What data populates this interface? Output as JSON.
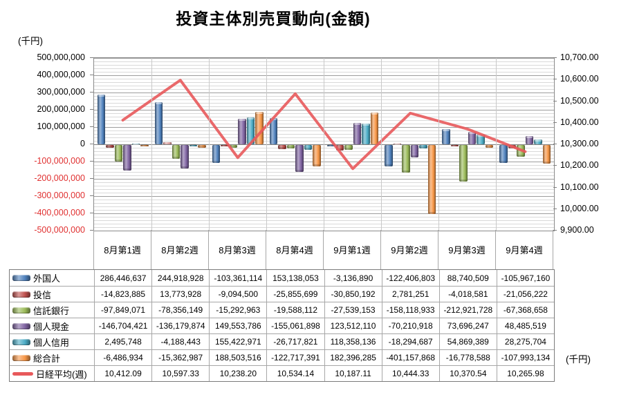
{
  "chart_data": {
    "type": "combo-bar-line",
    "title": "投資主体別売買動向(金額)",
    "categories": [
      "8月第1週",
      "8月第2週",
      "8月第3週",
      "8月第4週",
      "9月第1週",
      "9月第2週",
      "9月第3週",
      "9月第4週"
    ],
    "bar_series": [
      {
        "name": "外国人",
        "color": "#4F81BD",
        "values": [
          286446637,
          244918928,
          -103361114,
          153138053,
          -3136890,
          -122406803,
          88740509,
          -105967160
        ]
      },
      {
        "name": "投信",
        "color": "#C0504D",
        "values": [
          -14823885,
          13773928,
          -9094500,
          -25855699,
          -30850192,
          2781251,
          -4018581,
          -21056222
        ]
      },
      {
        "name": "信託銀行",
        "color": "#9BBB59",
        "values": [
          -97849071,
          -78356149,
          -15292963,
          -19588112,
          -27539153,
          -158118933,
          -212921728,
          -67368658
        ]
      },
      {
        "name": "個人現金",
        "color": "#8064A2",
        "values": [
          -146704421,
          -136179874,
          149553786,
          -155061898,
          123512110,
          -70210918,
          73696247,
          48485519
        ]
      },
      {
        "name": "個人信用",
        "color": "#4BACC6",
        "values": [
          2495748,
          -4188443,
          155422971,
          -26717821,
          118358136,
          -18294687,
          54869389,
          28275704
        ]
      },
      {
        "name": "総合計",
        "color": "#F79646",
        "values": [
          -6486934,
          -15362987,
          188503516,
          -122717391,
          182396285,
          -401157868,
          -16778588,
          -107993134
        ]
      }
    ],
    "line_series": {
      "name": "日経平均(週)",
      "color": "#E8595B",
      "axis": "right",
      "values": [
        10412.09,
        10597.33,
        10238.2,
        10534.14,
        10187.11,
        10444.33,
        10370.54,
        10265.98
      ]
    },
    "left_axis": {
      "unit": "(千円)",
      "min": -500000000,
      "max": 500000000,
      "major_step": 100000000,
      "minor_step": 20000000,
      "negative_label_color": "#E03030"
    },
    "right_axis": {
      "min": 9900,
      "max": 10700,
      "step": 100
    },
    "table_unit": "(千円)",
    "legend_position": "data-table-left",
    "grid": true
  }
}
